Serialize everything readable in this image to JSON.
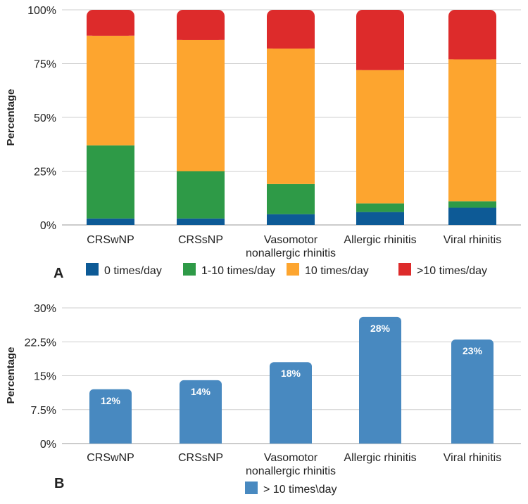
{
  "chart_data": [
    {
      "panel_label": "A",
      "type": "bar",
      "stacked": true,
      "ylabel": "Percentage",
      "ylim": [
        0,
        100
      ],
      "yticks": [
        0,
        25,
        50,
        75,
        100
      ],
      "ytick_labels": [
        "0%",
        "25%",
        "50%",
        "75%",
        "100%"
      ],
      "grid": true,
      "legend_position": "bottom",
      "categories": [
        "CRSwNP",
        "CRSsNP",
        "Vasomotor\nnonallergic rhinitis",
        "Allergic rhinitis",
        "Viral rhinitis"
      ],
      "series": [
        {
          "name": "0 times/day",
          "color": "#0d5a96",
          "values": [
            3,
            3,
            5,
            6,
            8
          ]
        },
        {
          "name": "1-10 times/day",
          "color": "#2e9a47",
          "values": [
            34,
            22,
            14,
            4,
            3
          ]
        },
        {
          "name": "10 times/day",
          "color": "#fda52f",
          "values": [
            51,
            61,
            63,
            62,
            66
          ]
        },
        {
          "name": ">10 times/day",
          "color": "#dd2b2b",
          "values": [
            12,
            14,
            18,
            28,
            23
          ]
        }
      ]
    },
    {
      "panel_label": "B",
      "type": "bar",
      "ylabel": "Percentage",
      "ylim": [
        0,
        30
      ],
      "yticks": [
        0,
        7.5,
        15,
        22.5,
        30
      ],
      "ytick_labels": [
        "0%",
        "7.5%",
        "15%",
        "22.5%",
        "30%"
      ],
      "grid": true,
      "legend_position": "bottom",
      "categories": [
        "CRSwNP",
        "CRSsNP",
        "Vasomotor\nnonallergic rhinitis",
        "Allergic rhinitis",
        "Viral rhinitis"
      ],
      "series": [
        {
          "name": "> 10 times\\day",
          "color": "#4889c0",
          "values": [
            12,
            14,
            18,
            28,
            23
          ],
          "data_labels": [
            "12%",
            "14%",
            "18%",
            "28%",
            "23%"
          ]
        }
      ]
    }
  ]
}
